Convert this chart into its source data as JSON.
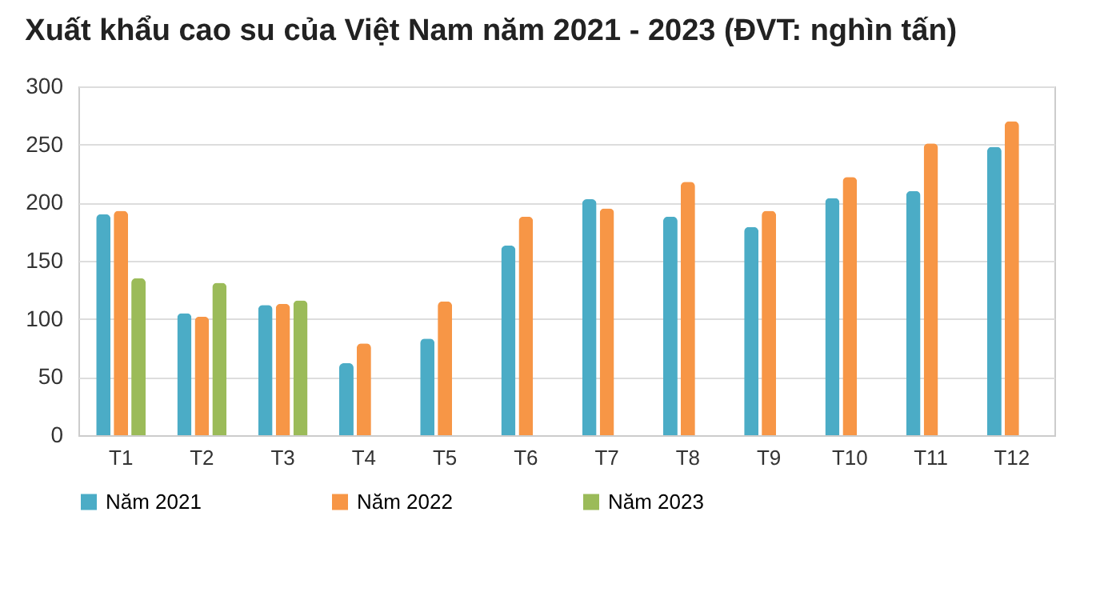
{
  "chart_data": {
    "type": "bar",
    "title": "Xuất khẩu cao su của Việt Nam năm 2021 - 2023 (ĐVT: nghìn tấn)",
    "categories": [
      "T1",
      "T2",
      "T3",
      "T4",
      "T5",
      "T6",
      "T7",
      "T8",
      "T9",
      "T10",
      "T11",
      "T12"
    ],
    "series": [
      {
        "name": "Năm 2021",
        "color": "#4bacc6",
        "values": [
          190,
          105,
          112,
          62,
          83,
          163,
          203,
          188,
          179,
          204,
          210,
          248
        ]
      },
      {
        "name": "Năm 2022",
        "color": "#f79646",
        "values": [
          193,
          102,
          113,
          79,
          115,
          188,
          195,
          218,
          193,
          222,
          251,
          270
        ]
      },
      {
        "name": "Năm 2023",
        "color": "#9bbb59",
        "values": [
          135,
          131,
          116,
          null,
          null,
          null,
          null,
          null,
          null,
          null,
          null,
          null
        ]
      }
    ],
    "ylim": [
      0,
      300
    ],
    "yticks": [
      0,
      50,
      100,
      150,
      200,
      250,
      300
    ],
    "grid": "y",
    "legend": "bottom"
  }
}
